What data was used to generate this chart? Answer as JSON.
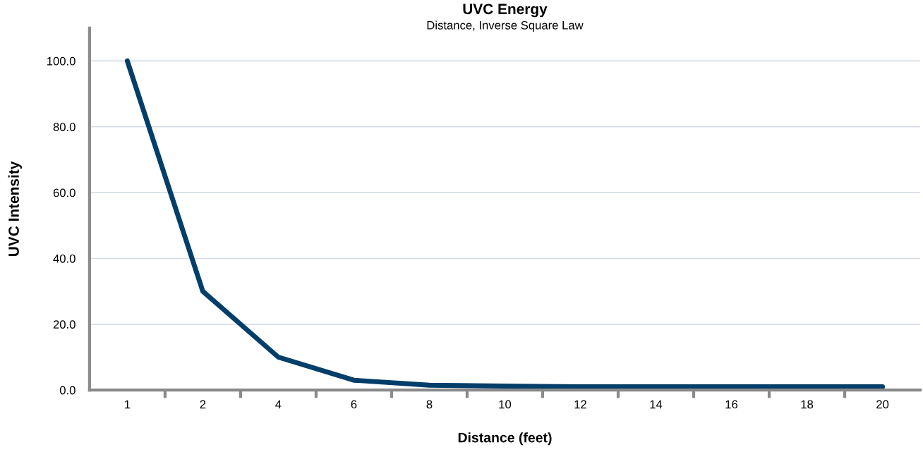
{
  "chart_data": {
    "type": "line",
    "title": "UVC Energy",
    "subtitle": "Distance, Inverse Square Law",
    "xlabel": "Distance (feet)",
    "ylabel": "UVC Intensity",
    "categories": [
      "1",
      "2",
      "4",
      "6",
      "8",
      "10",
      "12",
      "14",
      "16",
      "18",
      "20"
    ],
    "series": [
      {
        "color": "#023e6a",
        "values": [
          100,
          30,
          10,
          3,
          1.5,
          1.2,
          1,
          1,
          1,
          1,
          1
        ]
      }
    ],
    "ylim": [
      0,
      110
    ],
    "yticks": [
      {
        "value": 0,
        "label": "0.0"
      },
      {
        "value": 20,
        "label": "20.0"
      },
      {
        "value": 40,
        "label": "40.0"
      },
      {
        "value": 60,
        "label": "60.0"
      },
      {
        "value": 80,
        "label": "80.0"
      },
      {
        "value": 100,
        "label": "100.0"
      }
    ],
    "grid": "y",
    "legend": false,
    "marker": "none",
    "line_style": "solid"
  }
}
